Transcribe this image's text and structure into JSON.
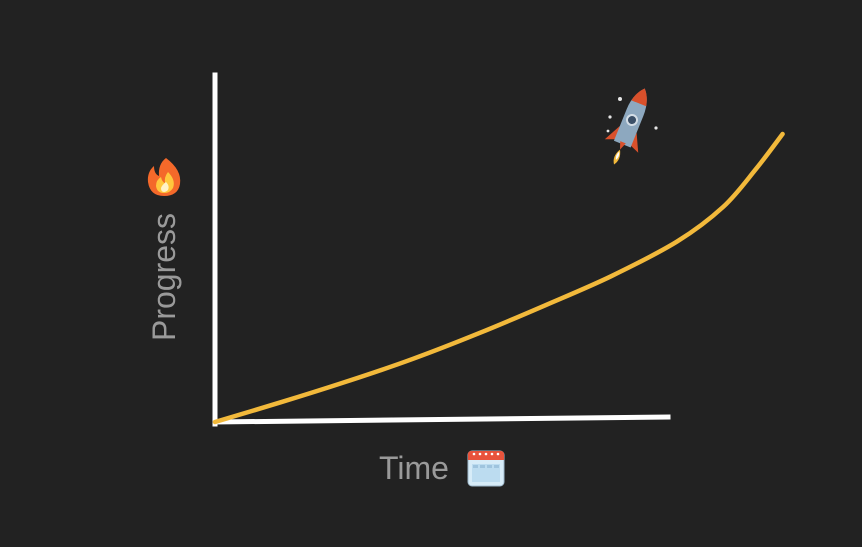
{
  "chart_data": {
    "type": "line",
    "title": "",
    "xlabel": "Time",
    "ylabel": "Progress",
    "grid": false,
    "legend": "none",
    "series": [
      {
        "points": [
          [
            0,
            0
          ],
          [
            0.1,
            0.057
          ],
          [
            0.2,
            0.117
          ],
          [
            0.3,
            0.182
          ],
          [
            0.4,
            0.256
          ],
          [
            0.5,
            0.336
          ],
          [
            0.6,
            0.42
          ],
          [
            0.7,
            0.52
          ],
          [
            0.77,
            0.62
          ],
          [
            0.82,
            0.73
          ],
          [
            0.86,
            0.83
          ]
        ]
      }
    ],
    "xlim": [
      0,
      1
    ],
    "ylim": [
      0,
      1
    ]
  },
  "icons": {
    "y_label_icon": "fire-icon",
    "x_label_icon": "calendar-icon",
    "line_end_icon": "rocket-icon"
  },
  "colors": {
    "background": "#222222",
    "axis": "#ffffff",
    "line": "#f2b93b",
    "label": "#9a9a9a",
    "fire_outer": "#f4692a",
    "fire_inner": "#ffc83d",
    "calendar_top": "#e8533c",
    "calendar_body": "#d7ecf8",
    "rocket_body": "#8da8bf",
    "rocket_fin": "#d9502b"
  }
}
